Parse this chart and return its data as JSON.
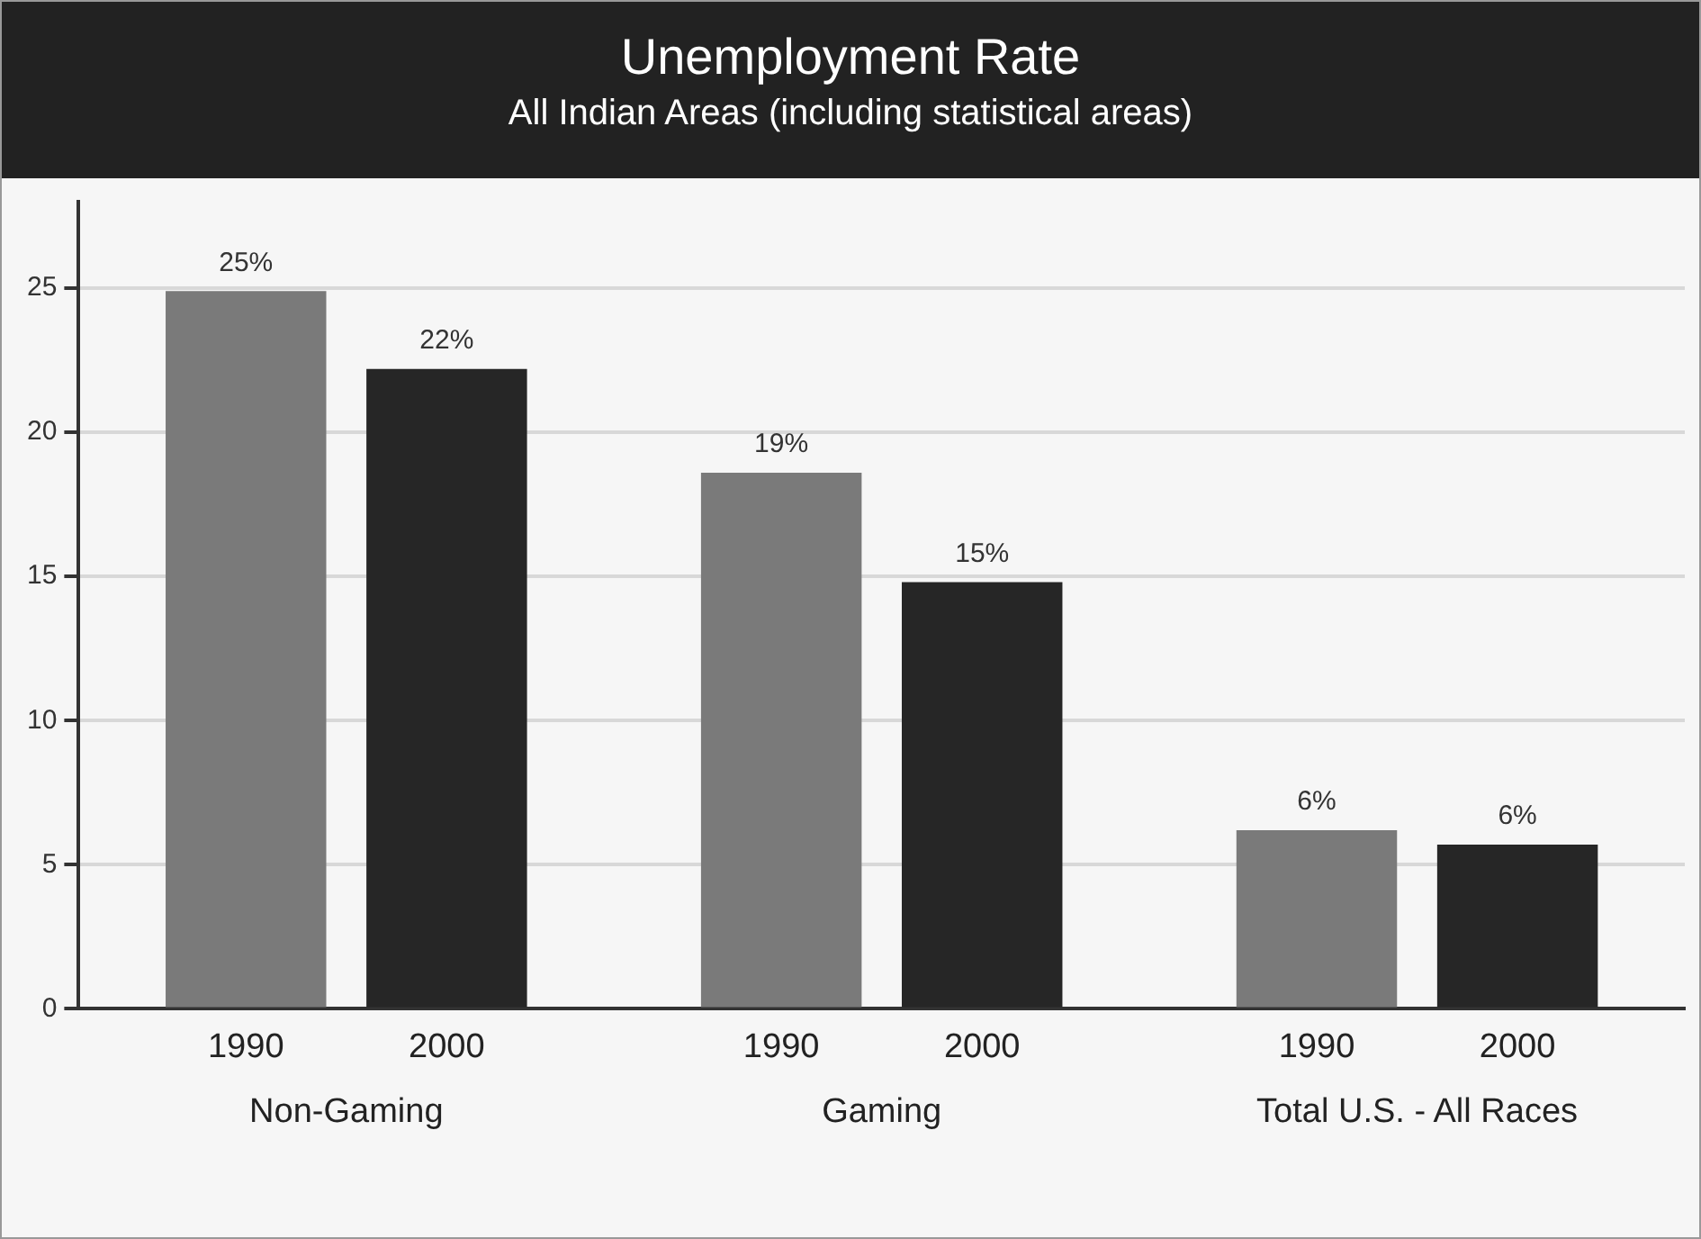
{
  "chart_data": {
    "type": "bar",
    "title": "Unemployment Rate",
    "subtitle": "All Indian Areas (including statistical areas)",
    "categories": [
      "Non-Gaming",
      "Gaming",
      "Total U.S. - All Races"
    ],
    "series": [
      {
        "name": "1990",
        "color": "#7a7a7a",
        "values": [
          24.9,
          18.6,
          6.2
        ],
        "value_labels": [
          "25%",
          "19%",
          "6%"
        ]
      },
      {
        "name": "2000",
        "color": "#262626",
        "values": [
          22.2,
          14.8,
          5.7
        ],
        "value_labels": [
          "22%",
          "15%",
          "6%"
        ]
      }
    ],
    "ylim": [
      0,
      28
    ],
    "yticks": [
      0,
      5,
      10,
      15,
      20,
      25
    ],
    "grid": "y",
    "legend": false
  }
}
